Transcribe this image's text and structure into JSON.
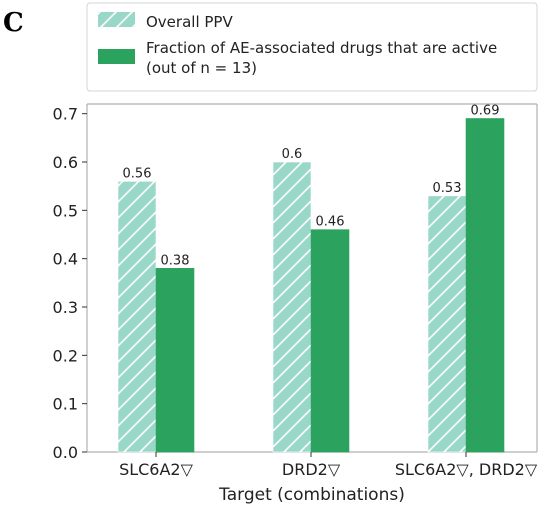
{
  "panel_label": "C",
  "colors": {
    "overall": "#99d8c9",
    "fraction": "#2ca25f",
    "hatch": "#ffffff",
    "axis": "#b0b0b0"
  },
  "chart_data": {
    "type": "bar",
    "categories": [
      "SLC6A2▽",
      "DRD2▽",
      "SLC6A2▽, DRD2▽"
    ],
    "series": [
      {
        "name": "Overall PPV",
        "values": [
          0.56,
          0.6,
          0.53
        ],
        "labels": [
          "0.56",
          "0.6",
          "0.53"
        ],
        "pattern": "hatched"
      },
      {
        "name": "Fraction of AE-associated drugs that are active\n(out of n = 13)",
        "values": [
          0.38,
          0.46,
          0.69
        ],
        "labels": [
          "0.38",
          "0.46",
          "0.69"
        ],
        "pattern": "solid"
      }
    ],
    "legend_lines": [
      [
        "Overall PPV"
      ],
      [
        "Fraction of AE-associated drugs that are active",
        "(out of n = 13)"
      ]
    ],
    "xlabel": "Target (combinations)",
    "ylabel": "",
    "ylim": [
      0,
      0.72
    ],
    "yticks": [
      "0.0",
      "0.1",
      "0.2",
      "0.3",
      "0.4",
      "0.5",
      "0.6",
      "0.7"
    ],
    "ytick_values": [
      0,
      0.1,
      0.2,
      0.3,
      0.4,
      0.5,
      0.6,
      0.7
    ],
    "legend_position": "top",
    "grid": false
  }
}
